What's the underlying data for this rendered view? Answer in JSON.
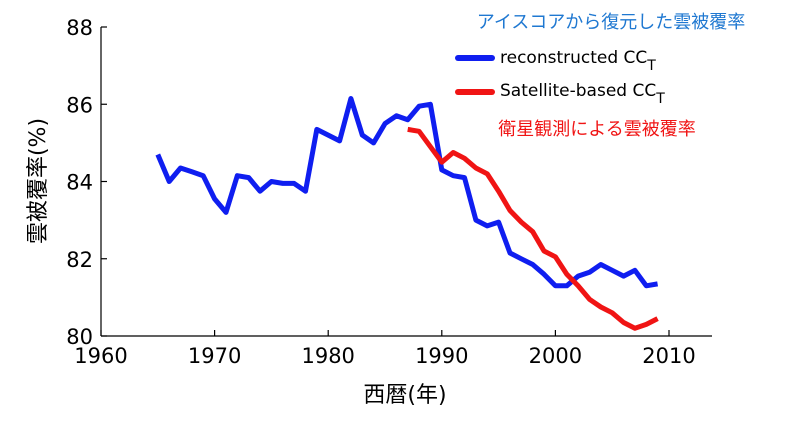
{
  "colors": {
    "reconstructed": "#0f1ef0",
    "satellite": "#f01414",
    "annotation_blue": "#1f78d1",
    "annotation_red": "#f01414",
    "axis": "#000000"
  },
  "chart_data": {
    "type": "line",
    "xlabel": "西暦(年)",
    "ylabel": "雲被覆率(%)",
    "xlim": [
      1960,
      2015
    ],
    "ylim": [
      80,
      88
    ],
    "xticks": [
      1960,
      1970,
      1980,
      1990,
      2000,
      2010
    ],
    "yticks": [
      80,
      82,
      84,
      86,
      88
    ],
    "grid": false,
    "legend_position": "top-right",
    "annotations": [
      {
        "text": "アイスコアから復元した雲被覆率",
        "color": "annotation_blue"
      },
      {
        "text": "衛星観測による雲被覆率",
        "color": "annotation_red"
      }
    ],
    "series": [
      {
        "name": "reconstructed CC",
        "name_subscript": "T",
        "color_key": "reconstructed",
        "x": [
          1965,
          1966,
          1967,
          1968,
          1969,
          1970,
          1971,
          1972,
          1973,
          1974,
          1975,
          1976,
          1977,
          1978,
          1979,
          1980,
          1981,
          1982,
          1983,
          1984,
          1985,
          1986,
          1987,
          1988,
          1989,
          1990,
          1991,
          1992,
          1993,
          1994,
          1995,
          1996,
          1997,
          1998,
          1999,
          2000,
          2001,
          2002,
          2003,
          2004,
          2005,
          2006,
          2007,
          2008,
          2009
        ],
        "y": [
          84.7,
          84.0,
          84.35,
          84.25,
          84.15,
          83.55,
          83.2,
          84.15,
          84.1,
          83.75,
          84.0,
          83.95,
          83.95,
          83.75,
          85.35,
          85.2,
          85.05,
          86.15,
          85.2,
          85.0,
          85.5,
          85.7,
          85.6,
          85.95,
          86.0,
          84.3,
          84.15,
          84.1,
          83.0,
          82.85,
          82.95,
          82.15,
          82.0,
          81.85,
          81.6,
          81.3,
          81.3,
          81.55,
          81.65,
          81.85,
          81.7,
          81.55,
          81.7,
          81.3,
          81.35
        ]
      },
      {
        "name": "Satellite-based CC",
        "name_subscript": "T",
        "color_key": "satellite",
        "x": [
          1987,
          1988,
          1989,
          1990,
          1991,
          1992,
          1993,
          1994,
          1995,
          1996,
          1997,
          1998,
          1999,
          2000,
          2001,
          2002,
          2003,
          2004,
          2005,
          2006,
          2007,
          2008,
          2009
        ],
        "y": [
          85.35,
          85.3,
          84.9,
          84.5,
          84.75,
          84.6,
          84.35,
          84.2,
          83.75,
          83.25,
          82.95,
          82.7,
          82.2,
          82.05,
          81.6,
          81.3,
          80.95,
          80.75,
          80.6,
          80.35,
          80.2,
          80.3,
          80.45
        ]
      }
    ]
  }
}
